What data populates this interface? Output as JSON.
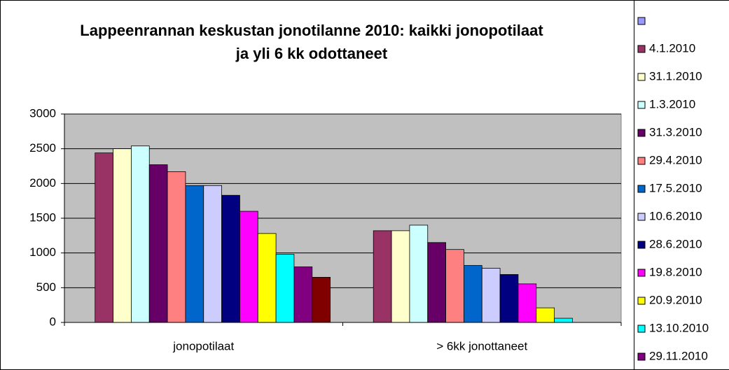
{
  "chart_data": {
    "type": "bar",
    "title": [
      "Lappeenrannan keskustan jonotilanne 2010: kaikki jonopotilaat",
      "ja yli 6 kk odottaneet"
    ],
    "categories": [
      "jonopotilaat",
      "> 6kk jonottaneet"
    ],
    "ylim": [
      0,
      3000
    ],
    "yticks": [
      0,
      500,
      1000,
      1500,
      2000,
      2500,
      3000
    ],
    "grid": true,
    "legend": "right",
    "series": [
      {
        "name": null,
        "color": "#9999ff",
        "values": [
          null,
          null
        ]
      },
      {
        "name": "4.1.2010",
        "color": "#993366",
        "values": [
          2440,
          1320
        ]
      },
      {
        "name": "31.1.2010",
        "color": "#ffffcc",
        "values": [
          2500,
          1320
        ]
      },
      {
        "name": "1.3.2010",
        "color": "#ccffff",
        "values": [
          2540,
          1400
        ]
      },
      {
        "name": "31.3.2010",
        "color": "#660066",
        "values": [
          2270,
          1150
        ]
      },
      {
        "name": "29.4.2010",
        "color": "#ff8080",
        "values": [
          2170,
          1050
        ]
      },
      {
        "name": "17.5.2010",
        "color": "#0066cc",
        "values": [
          1970,
          820
        ]
      },
      {
        "name": "10.6.2010",
        "color": "#ccccff",
        "values": [
          1970,
          780
        ]
      },
      {
        "name": "28.6.2010",
        "color": "#000080",
        "values": [
          1830,
          690
        ]
      },
      {
        "name": "19.8.2010",
        "color": "#ff00ff",
        "values": [
          1600,
          555
        ]
      },
      {
        "name": "20.9.2010",
        "color": "#ffff00",
        "values": [
          1280,
          210
        ]
      },
      {
        "name": "13.10.2010",
        "color": "#00ffff",
        "values": [
          980,
          60
        ]
      },
      {
        "name": "29.11.2010",
        "color": "#800080",
        "values": [
          800,
          null
        ]
      },
      {
        "name": null,
        "color": "#800000",
        "values": [
          650,
          null
        ]
      }
    ]
  }
}
